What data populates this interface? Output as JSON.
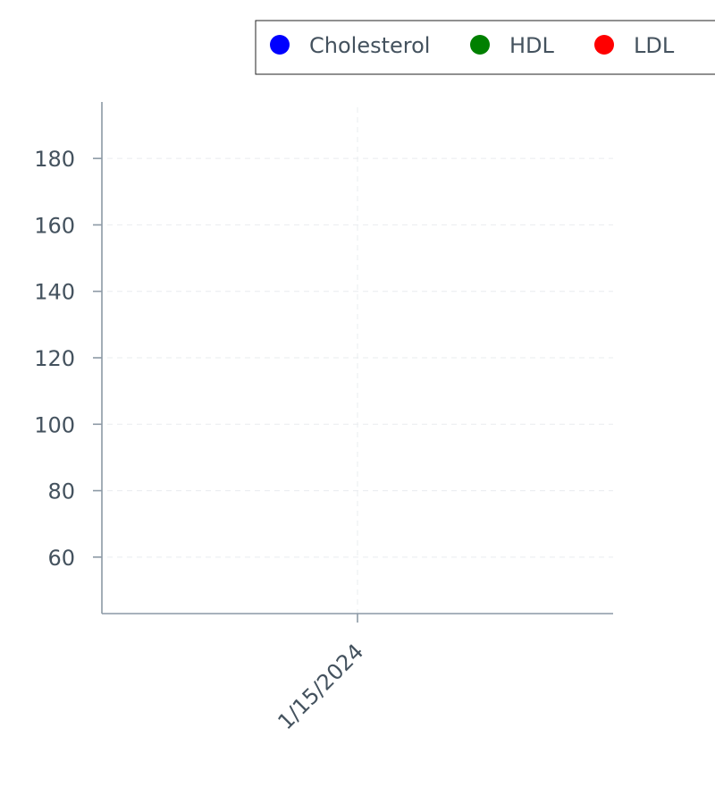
{
  "chart_data": {
    "type": "scatter",
    "title": "",
    "xlabel": "",
    "ylabel": "",
    "categories": [
      "1/15/2024"
    ],
    "ylim": [
      43,
      197
    ],
    "y_ticks": [
      60,
      80,
      100,
      120,
      140,
      160,
      180
    ],
    "grid": true,
    "legend_position": "top-right",
    "series": [
      {
        "name": "Cholesterol",
        "color": "#0000ff",
        "values": []
      },
      {
        "name": "HDL",
        "color": "#008000",
        "values": []
      },
      {
        "name": "LDL",
        "color": "#ff0000",
        "values": []
      },
      {
        "name": "",
        "color": "#800080",
        "values": []
      }
    ]
  }
}
